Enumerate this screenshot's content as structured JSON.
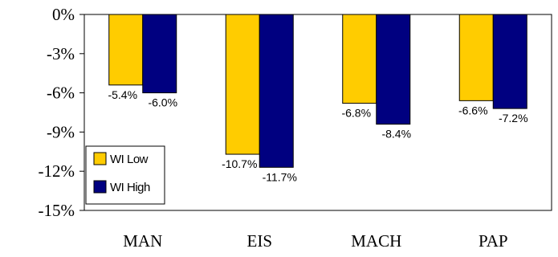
{
  "chart_data": {
    "type": "bar",
    "title": "",
    "xlabel": "",
    "ylabel": "",
    "categories": [
      "MAN",
      "EIS",
      "MACH",
      "PAP"
    ],
    "series": [
      {
        "name": "WI Low",
        "values": [
          -5.4,
          -10.7,
          -6.8,
          -6.6
        ],
        "labels": [
          "-5.4%",
          "-10.7%",
          "-6.8%",
          "-6.6%"
        ],
        "color": "#FFCC00"
      },
      {
        "name": "WI High",
        "values": [
          -6.0,
          -11.7,
          -8.4,
          -7.2
        ],
        "labels": [
          "-6.0%",
          "-11.7%",
          "-8.4%",
          "-7.2%"
        ],
        "color": "#000080"
      }
    ],
    "ylim": [
      -15,
      0
    ],
    "yticks": [
      0,
      -3,
      -6,
      -9,
      -12,
      -15
    ],
    "ytick_labels": [
      "0%",
      "-3%",
      "-6%",
      "-9%",
      "-12%",
      "-15%"
    ],
    "grid": false,
    "legend_position": "lower-left"
  }
}
